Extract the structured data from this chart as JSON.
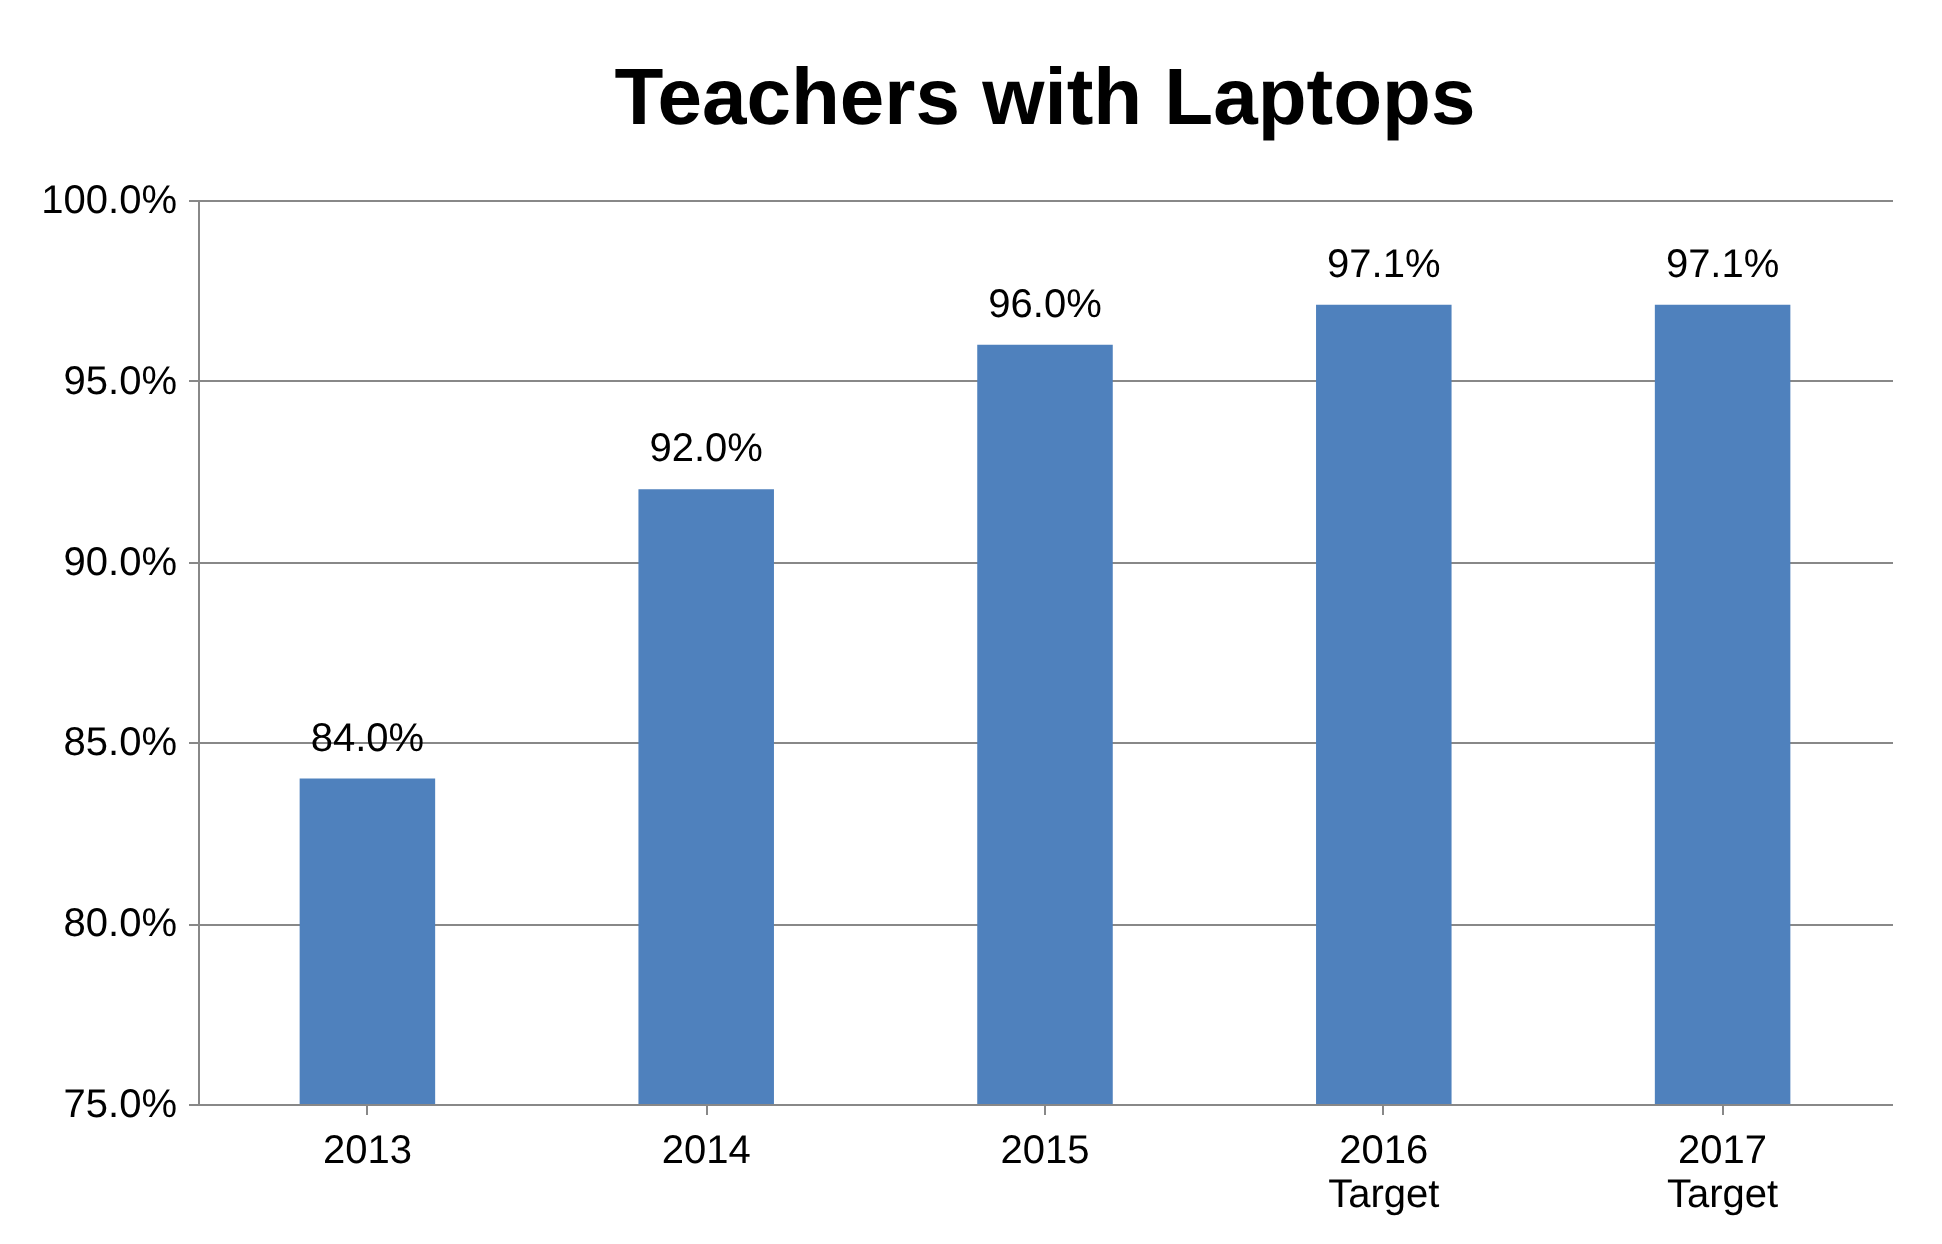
{
  "chart_data": {
    "type": "bar",
    "title": "Teachers with Laptops",
    "categories": [
      "2013",
      "2014",
      "2015",
      "2016\nTarget",
      "2017\nTarget"
    ],
    "values": [
      84.0,
      92.0,
      96.0,
      97.1,
      97.1
    ],
    "value_labels": [
      "84.0%",
      "92.0%",
      "96.0%",
      "97.1%",
      "97.1%"
    ],
    "color": "#4f81bd",
    "ylim": [
      75,
      100
    ],
    "yticks": [
      {
        "value": 75,
        "label": "75.0%"
      },
      {
        "value": 80,
        "label": "80.0%"
      },
      {
        "value": 85,
        "label": "85.0%"
      },
      {
        "value": 90,
        "label": "90.0%"
      },
      {
        "value": 95,
        "label": "95.0%"
      },
      {
        "value": 100,
        "label": "100.0%"
      }
    ],
    "grid": "y"
  }
}
